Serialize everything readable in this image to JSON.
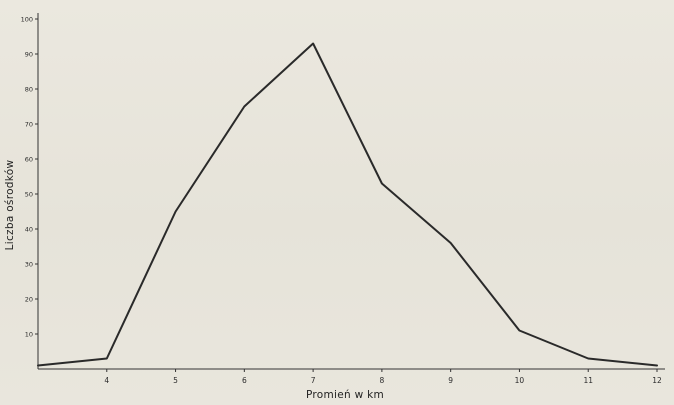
{
  "chart_data": {
    "type": "line",
    "title": "",
    "xlabel": "Promień w km",
    "ylabel": "Liczba ośrodków",
    "x": [
      3,
      4,
      5,
      6,
      7,
      8,
      9,
      10,
      11,
      12
    ],
    "xticks": [
      "4",
      "5",
      "6",
      "7",
      "8",
      "9",
      "10",
      "11",
      "12"
    ],
    "xlim": [
      3,
      12
    ],
    "yticks": [
      "10",
      "20",
      "30",
      "40",
      "50",
      "60",
      "70",
      "80",
      "90",
      "100"
    ],
    "ylim": [
      0,
      100
    ],
    "series": [
      {
        "values": [
          1,
          3,
          45,
          75,
          93,
          53,
          36,
          11,
          3,
          1
        ]
      }
    ],
    "grid": false,
    "line_color": "#2a2a2a"
  }
}
